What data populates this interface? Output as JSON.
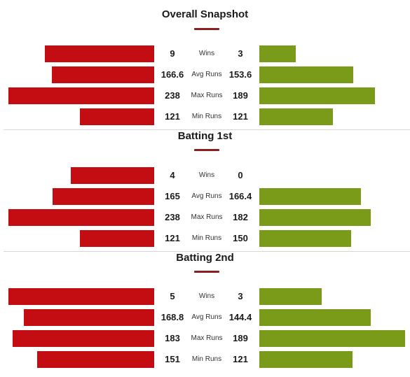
{
  "colors": {
    "left_bar": "#c40d12",
    "right_bar": "#7a9a1a",
    "accent_underline": "#8a1f1f"
  },
  "sections": [
    {
      "title": "Overall Snapshot",
      "rows": [
        {
          "label": "Wins",
          "left": "9",
          "right": "3"
        },
        {
          "label": "Avg Runs",
          "left": "166.6",
          "right": "153.6"
        },
        {
          "label": "Max Runs",
          "left": "238",
          "right": "189"
        },
        {
          "label": "Min Runs",
          "left": "121",
          "right": "121"
        }
      ]
    },
    {
      "title": "Batting 1st",
      "rows": [
        {
          "label": "Wins",
          "left": "4",
          "right": "0"
        },
        {
          "label": "Avg Runs",
          "left": "165",
          "right": "166.4"
        },
        {
          "label": "Max Runs",
          "left": "238",
          "right": "182"
        },
        {
          "label": "Min Runs",
          "left": "121",
          "right": "150"
        }
      ]
    },
    {
      "title": "Batting 2nd",
      "rows": [
        {
          "label": "Wins",
          "left": "5",
          "right": "3"
        },
        {
          "label": "Avg Runs",
          "left": "168.8",
          "right": "144.4"
        },
        {
          "label": "Max Runs",
          "left": "183",
          "right": "189"
        },
        {
          "label": "Min Runs",
          "left": "151",
          "right": "121"
        }
      ]
    }
  ]
}
